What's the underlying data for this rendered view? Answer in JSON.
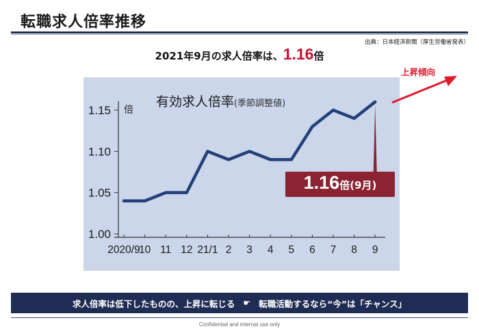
{
  "slide": {
    "title": "転職求人倍率推移",
    "source": "出典：日本経済新聞（厚生労働省発表）",
    "headline_prefix": "2021年9月の求人倍率は、",
    "headline_value": "1.16",
    "headline_suffix": "倍",
    "banner_left": "求人倍率は低下したものの、上昇に転じる",
    "banner_pointer_icon": "☛",
    "banner_right": "転職活動するなら“今”は「チャンス」",
    "confidential": "Confidential and internal use only"
  },
  "chart_title": "有効求人倍率",
  "chart_subtitle": "(季節調整値)",
  "y_unit": "倍",
  "callout": {
    "value": "1.16",
    "unit": "倍",
    "month": "(9月)"
  },
  "trend_label": "上昇傾向",
  "colors": {
    "panel": "#cbd6ea",
    "line": "#23407a",
    "callout": "#8b2332",
    "accent_red": "#e01a2b",
    "banner": "#1f2d54"
  },
  "chart_data": {
    "type": "line",
    "title": "有効求人倍率",
    "subtitle": "(季節調整値)",
    "ylabel": "倍",
    "categories": [
      "2020/9",
      "10",
      "11",
      "12",
      "21/1",
      "2",
      "3",
      "4",
      "5",
      "6",
      "7",
      "8",
      "9"
    ],
    "values": [
      1.04,
      1.04,
      1.05,
      1.05,
      1.1,
      1.09,
      1.1,
      1.09,
      1.09,
      1.13,
      1.15,
      1.14,
      1.16
    ],
    "yticks": [
      "1.00",
      "1.05",
      "1.10",
      "1.15"
    ],
    "ylim": [
      1.0,
      1.16
    ],
    "grid": false
  }
}
